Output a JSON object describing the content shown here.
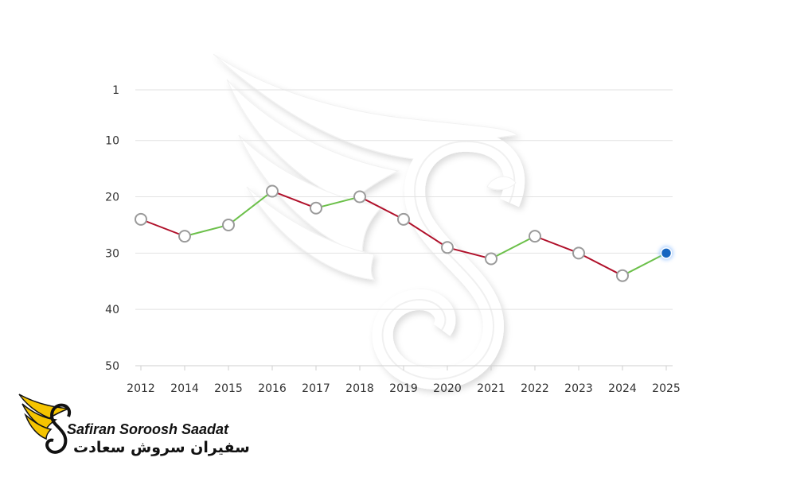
{
  "chart_data": {
    "type": "line",
    "title": "",
    "xlabel": "",
    "ylabel": "",
    "categories": [
      "2012",
      "2014",
      "2015",
      "2016",
      "2017",
      "2018",
      "2019",
      "2020",
      "2021",
      "2022",
      "2023",
      "2024",
      "2025"
    ],
    "series": [
      {
        "values": [
          24,
          27,
          25,
          19,
          22,
          20,
          24,
          29,
          31,
          27,
          30,
          34,
          30
        ]
      }
    ],
    "y_ticks": [
      1,
      10,
      20,
      30,
      40,
      50
    ],
    "ylim": [
      1,
      50
    ],
    "y_inverted": true,
    "grid": true,
    "colors": {
      "rise": "#6cc04a",
      "fall": "#b0102a",
      "marker_stroke": "#9a9a9a",
      "marker_fill": "#ffffff",
      "last_marker": "#1565c0",
      "grid": "#e2e2e2"
    }
  },
  "brand": {
    "name_en": "Safiran Soroosh Saadat",
    "name_fa": "سفیران سروش سعادت",
    "logo_icon": "winged-s-logo",
    "watermark_icon": "winged-s-watermark",
    "logo_color": "#f5c400"
  }
}
